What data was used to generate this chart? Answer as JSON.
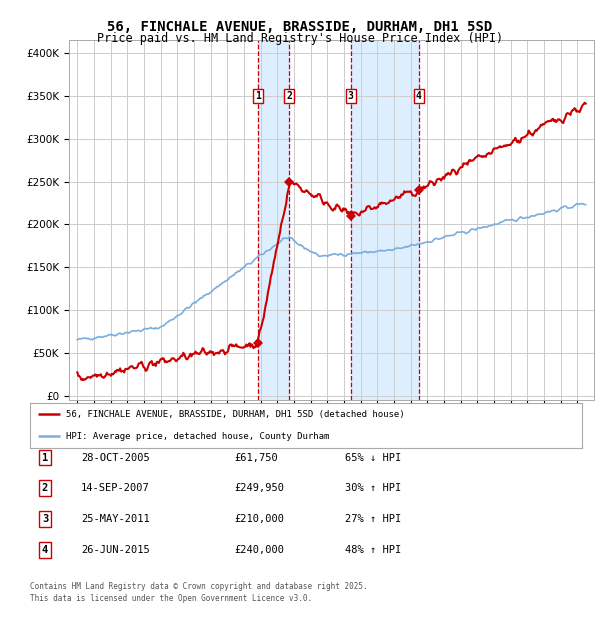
{
  "title": "56, FINCHALE AVENUE, BRASSIDE, DURHAM, DH1 5SD",
  "subtitle": "Price paid vs. HM Land Registry's House Price Index (HPI)",
  "title_fontsize": 10,
  "subtitle_fontsize": 8.5,
  "background_color": "#ffffff",
  "plot_bg_color": "#ffffff",
  "grid_color": "#cccccc",
  "hpi_line_color": "#7aaedc",
  "price_line_color": "#cc0000",
  "sale_marker_color": "#cc0000",
  "shade_color": "#ddeeff",
  "dashed_line_color": "#cc0000",
  "yticks": [
    0,
    50000,
    100000,
    150000,
    200000,
    250000,
    300000,
    350000,
    400000
  ],
  "ylim": [
    -5000,
    415000
  ],
  "xlim": [
    1994.5,
    2026.0
  ],
  "transactions": [
    {
      "num": 1,
      "date": "28-OCT-2005",
      "price": 61750,
      "x_year": 2005.83
    },
    {
      "num": 2,
      "date": "14-SEP-2007",
      "price": 249950,
      "x_year": 2007.71
    },
    {
      "num": 3,
      "date": "25-MAY-2011",
      "price": 210000,
      "x_year": 2011.4
    },
    {
      "num": 4,
      "date": "26-JUN-2015",
      "price": 240000,
      "x_year": 2015.49
    }
  ],
  "legend_entries": [
    "56, FINCHALE AVENUE, BRASSIDE, DURHAM, DH1 5SD (detached house)",
    "HPI: Average price, detached house, County Durham"
  ],
  "footer_text": "Contains HM Land Registry data © Crown copyright and database right 2025.\nThis data is licensed under the Open Government Licence v3.0.",
  "table_rows": [
    [
      "1",
      "28-OCT-2005",
      "£61,750",
      "65% ↓ HPI"
    ],
    [
      "2",
      "14-SEP-2007",
      "£249,950",
      "30% ↑ HPI"
    ],
    [
      "3",
      "25-MAY-2011",
      "£210,000",
      "27% ↑ HPI"
    ],
    [
      "4",
      "26-JUN-2015",
      "£240,000",
      "48% ↑ HPI"
    ]
  ]
}
